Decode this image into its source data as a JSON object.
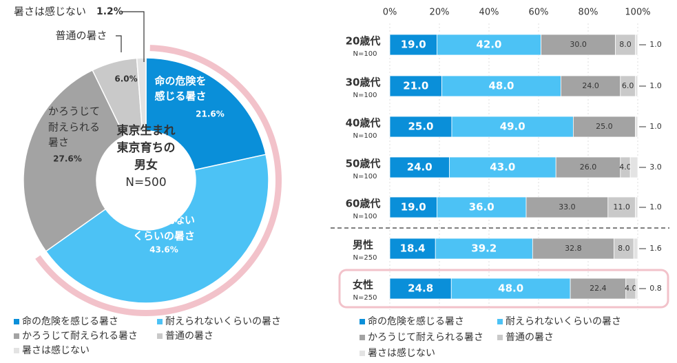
{
  "chart_data": [
    {
      "type": "donut",
      "categories": [
        "命の危険を感じる暑さ",
        "耐えられないくらいの暑さ",
        "かろうじて耐えられる暑さ",
        "普通の暑さ",
        "暑さは感じない"
      ],
      "values": [
        21.6,
        43.6,
        27.6,
        6.0,
        1.2
      ],
      "value_labels": [
        "21.6%",
        "43.6%",
        "27.6%",
        "6.0%",
        "1.2%"
      ],
      "slice_labels": [
        [
          "命の危険を",
          "感じる暑さ"
        ],
        [
          "耐えられない",
          "くらいの暑さ"
        ],
        [
          "かろうじて",
          "耐えられる",
          "暑さ"
        ],
        [
          "普通の暑さ"
        ],
        [
          "暑さは感じない"
        ]
      ],
      "colors": [
        "#0a8fd9",
        "#4cc2f5",
        "#a3a3a3",
        "#c9c9c9",
        "#e3e3e3"
      ],
      "center_label": [
        "東京生まれ",
        "東京育ちの",
        "男女",
        "N=500"
      ],
      "highlight_color": "#f2c2ca"
    },
    {
      "type": "stacked-bar-horizontal",
      "categories": [
        "20歳代",
        "30歳代",
        "40歳代",
        "50歳代",
        "60歳代",
        "男性",
        "女性"
      ],
      "sample_sizes": [
        "N=100",
        "N=100",
        "N=100",
        "N=100",
        "N=100",
        "N=250",
        "N=250"
      ],
      "xlim": [
        0,
        100
      ],
      "xticks": [
        {
          "value": 0,
          "label": "0%"
        },
        {
          "value": 20,
          "label": "20%"
        },
        {
          "value": 40,
          "label": "40%"
        },
        {
          "value": 60,
          "label": "60%"
        },
        {
          "value": 80,
          "label": "80%"
        },
        {
          "value": 100,
          "label": "100%"
        }
      ],
      "series": [
        {
          "name": "命の危険を感じる暑さ",
          "color": "#0a8fd9",
          "values": [
            19.0,
            21.0,
            25.0,
            24.0,
            19.0,
            18.4,
            24.8
          ],
          "value_labels": [
            "19.0",
            "21.0",
            "25.0",
            "24.0",
            "19.0",
            "18.4",
            "24.8"
          ]
        },
        {
          "name": "耐えられないくらいの暑さ",
          "color": "#4cc2f5",
          "values": [
            42.0,
            48.0,
            49.0,
            43.0,
            36.0,
            39.2,
            48.0
          ],
          "value_labels": [
            "42.0",
            "48.0",
            "49.0",
            "43.0",
            "36.0",
            "39.2",
            "48.0"
          ]
        },
        {
          "name": "かろうじて耐えられる暑さ",
          "color": "#a3a3a3",
          "values": [
            30.0,
            24.0,
            25.0,
            26.0,
            33.0,
            32.8,
            22.4
          ],
          "value_labels": [
            "30.0",
            "24.0",
            "25.0",
            "26.0",
            "33.0",
            "32.8",
            "22.4"
          ]
        },
        {
          "name": "普通の暑さ",
          "color": "#c9c9c9",
          "values": [
            8.0,
            6.0,
            null,
            4.0,
            11.0,
            8.0,
            4.0
          ],
          "value_labels": [
            "8.0",
            "6.0",
            null,
            "4.0",
            "11.0",
            "8.0",
            "4.0"
          ]
        },
        {
          "name": "暑さは感じない",
          "color": "#e3e3e3",
          "values": [
            1.0,
            1.0,
            1.0,
            3.0,
            1.0,
            1.6,
            0.8
          ],
          "value_labels": [
            "1.0",
            "1.0",
            "1.0",
            "3.0",
            "1.0",
            "1.6",
            "0.8"
          ]
        }
      ]
    }
  ]
}
